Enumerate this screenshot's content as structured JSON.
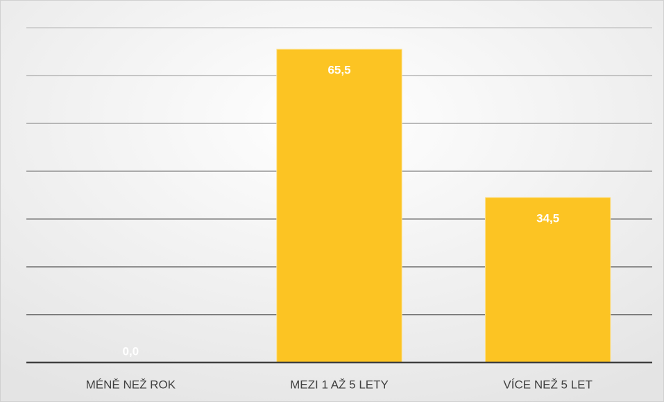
{
  "chart_data": {
    "type": "bar",
    "categories": [
      "MÉNĚ NEŽ ROK",
      "MEZI 1 AŽ 5 LETY",
      "VÍCE NEŽ 5 LET"
    ],
    "values": [
      0,
      65.5,
      34.5
    ],
    "value_labels": [
      "0,0",
      "65,5",
      "34,5"
    ],
    "color": "#fcc423",
    "ylim": [
      0,
      70
    ],
    "yticks": [
      0,
      10,
      20,
      30,
      40,
      50,
      60,
      70
    ],
    "grid": true
  }
}
